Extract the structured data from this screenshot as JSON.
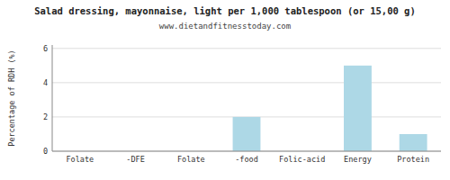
{
  "chart_data": {
    "type": "bar",
    "title": "Salad dressing, mayonnaise, light per 1,000 tablespoon (or 15,00 g)",
    "subtitle": "www.dietandfitnesstoday.com",
    "categories": [
      "Folate",
      "-DFE",
      "Folate",
      "-food",
      "Folic-acid",
      "Energy",
      "Protein"
    ],
    "values": [
      0,
      0,
      0,
      2.0,
      0,
      5.0,
      1.0
    ],
    "color": "#add8e6",
    "ylabel": "Percentage of RDH (%)",
    "ylim": [
      0,
      6.2
    ],
    "yticks": [
      0,
      2,
      4,
      6
    ],
    "grid": true
  }
}
